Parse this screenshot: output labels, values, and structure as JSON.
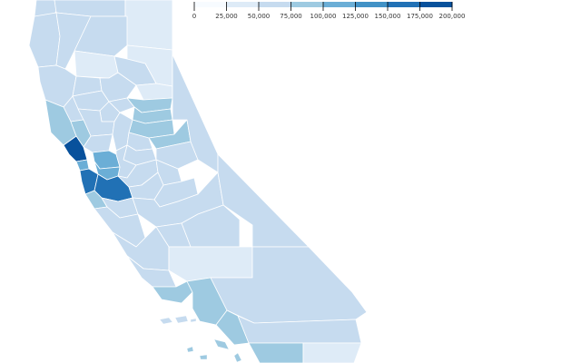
{
  "legend": {
    "domain": [
      0,
      200000
    ],
    "colors": [
      "#f7fbff",
      "#deebf7",
      "#c6dbef",
      "#9ecae1",
      "#6baed6",
      "#4292c6",
      "#2171b5",
      "#08519c"
    ],
    "ticks": [
      "0",
      "25,000",
      "50,000",
      "75,000",
      "100,000",
      "125,000",
      "150,000",
      "175,000",
      "200,000"
    ]
  },
  "colors": {
    "c1": "#deebf7",
    "c2": "#c6dbef",
    "c3": "#9ecae1",
    "c4": "#6baed6",
    "c5": "#2171b5",
    "c6": "#08519c",
    "border": "#ffffff"
  }
}
